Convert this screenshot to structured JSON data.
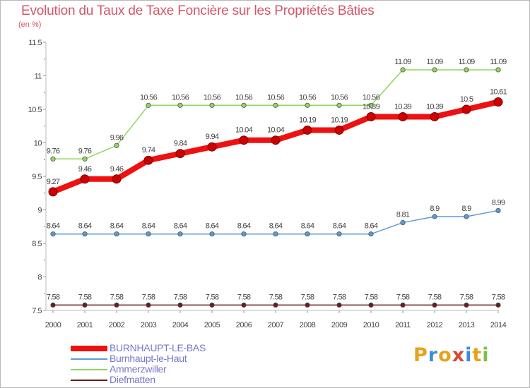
{
  "title": "Evolution du Taux de Taxe Foncière sur les Propriétés Bâties",
  "subtitle": "(en %)",
  "logo": {
    "text": "Proxiti",
    "letters": [
      "P",
      "r",
      "o",
      "x",
      "i",
      "t",
      "i"
    ],
    "colors": [
      "#e8a21a",
      "#3e8ed6",
      "#e8a21a",
      "#d94a36",
      "#3e8ed6",
      "#e8a21a",
      "#7cc04a"
    ]
  },
  "chart_data": {
    "type": "line",
    "x": [
      "2000",
      "2001",
      "2002",
      "2003",
      "2004",
      "2005",
      "2006",
      "2007",
      "2008",
      "2009",
      "2010",
      "2011",
      "2012",
      "2013",
      "2014"
    ],
    "ylim": [
      7.5,
      11.5
    ],
    "yticks": [
      "7.5",
      "8",
      "8.5",
      "9",
      "9.5",
      "10",
      "10.5",
      "11",
      "11.5"
    ],
    "grid": false,
    "legend_position": "bottom-left",
    "series": [
      {
        "name": "Diefmatten",
        "color": "#6b1a1a",
        "values": [
          7.58,
          7.58,
          7.58,
          7.58,
          7.58,
          7.58,
          7.58,
          7.58,
          7.58,
          7.58,
          7.58,
          7.58,
          7.58,
          7.58,
          7.58
        ],
        "labels": [
          "7.58",
          "7.58",
          "7.58",
          "7.58",
          "7.58",
          "7.58",
          "7.58",
          "7.58",
          "7.58",
          "7.58",
          "7.58",
          "7.58",
          "7.58",
          "7.58",
          "7.58"
        ]
      },
      {
        "name": "Burnhaupt-le-Haut",
        "color": "#5b9bd5",
        "values": [
          8.64,
          8.64,
          8.64,
          8.64,
          8.64,
          8.64,
          8.64,
          8.64,
          8.64,
          8.64,
          8.64,
          8.81,
          8.9,
          8.9,
          8.99
        ],
        "labels": [
          "8.64",
          "8.64",
          "8.64",
          "8.64",
          "8.64",
          "8.64",
          "8.64",
          "8.64",
          "8.64",
          "8.64",
          "8.64",
          "8.81",
          "8.9",
          "8.9",
          "8.99"
        ]
      },
      {
        "name": "Ammerzwiller",
        "color": "#8fd65a",
        "values": [
          9.76,
          9.76,
          9.96,
          10.56,
          10.56,
          10.56,
          10.56,
          10.56,
          10.56,
          10.56,
          10.56,
          11.09,
          11.09,
          11.09,
          11.09
        ],
        "labels": [
          "9.76",
          "9.76",
          "9.96",
          "10.56",
          "10.56",
          "10.56",
          "10.56",
          "10.56",
          "10.56",
          "10.56",
          "10.56",
          "11.09",
          "11.09",
          "11.09",
          "11.09"
        ]
      },
      {
        "name": "BURNHAUPT-LE-BAS",
        "color": "#ee1111",
        "values": [
          9.27,
          9.46,
          9.46,
          9.74,
          9.84,
          9.94,
          10.04,
          10.04,
          10.19,
          10.19,
          10.39,
          10.39,
          10.39,
          10.5,
          10.61
        ],
        "labels": [
          "9.27",
          "9.46",
          "9.46",
          "9.74",
          "9.84",
          "9.94",
          "10.04",
          "10.04",
          "10.19",
          "10.19",
          "10.39",
          "10.39",
          "10.39",
          "10.5",
          "10.61"
        ]
      }
    ],
    "legend_order": [
      "BURNHAUPT-LE-BAS",
      "Burnhaupt-le-Haut",
      "Ammerzwiller",
      "Diefmatten"
    ]
  }
}
